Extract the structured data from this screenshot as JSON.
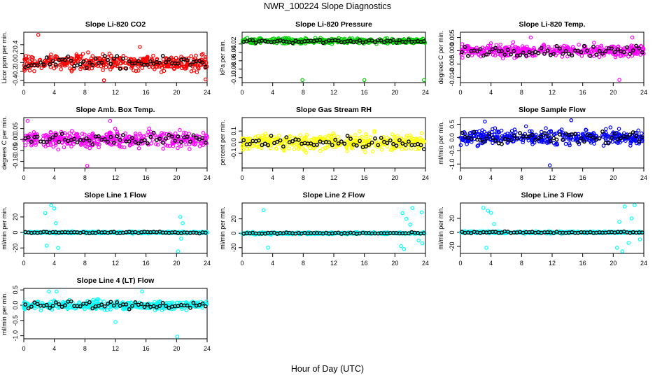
{
  "figure": {
    "title": "NWR_100224  Slope Diagnostics",
    "xlabel": "Hour of Day (UTC)"
  },
  "chart_data": [
    {
      "type": "scatter",
      "title": "Slope Li-820 CO2",
      "ylabel": "Licor ppm per min.",
      "xlim": [
        0,
        24
      ],
      "ylim": [
        -0.45,
        0.68
      ],
      "xticks": [
        0,
        4,
        8,
        12,
        16,
        20,
        24
      ],
      "yticks": [
        -0.4,
        -0.2,
        0,
        0.2,
        0.4
      ],
      "ytick_labels": [
        "-0.4",
        "-0.2",
        "0.0",
        "0.2",
        "0.4"
      ],
      "colors": [
        "#ff0000",
        "#000000"
      ],
      "spread": 0.17,
      "outliers": [
        [
          1.9,
          0.62
        ],
        [
          10.5,
          -0.4
        ],
        [
          23.8,
          -0.38
        ],
        [
          15.2,
          0.35
        ]
      ]
    },
    {
      "type": "scatter",
      "title": "Slope Li-820 Pressure",
      "ylabel": "kPa per min.",
      "xlim": [
        0,
        24
      ],
      "ylim": [
        -0.112,
        0.008
      ],
      "xticks": [
        0,
        4,
        8,
        12,
        16,
        20,
        24
      ],
      "yticks": [
        -0.1,
        -0.08,
        -0.06,
        -0.04,
        -0.02
      ],
      "ytick_labels": [
        "-0.10",
        "-0.08",
        "-0.06",
        "-0.04",
        "-0.02"
      ],
      "colors": [
        "#00cc00",
        "#000000"
      ],
      "center": -0.013,
      "spread": 0.006,
      "outliers": [
        [
          7.9,
          -0.106
        ],
        [
          16.0,
          -0.106
        ],
        [
          23.8,
          -0.106
        ]
      ]
    },
    {
      "type": "scatter",
      "title": "Slope Li-820 Temp.",
      "ylabel": "degrees C per min.",
      "xlim": [
        0,
        24
      ],
      "ylim": [
        -0.012,
        0.007
      ],
      "xticks": [
        0,
        4,
        8,
        12,
        16,
        20,
        24
      ],
      "yticks": [
        -0.01,
        -0.005,
        0,
        0.005
      ],
      "ytick_labels": [
        "-0.010",
        "-0.005",
        "0.000",
        "0.005"
      ],
      "colors": [
        "#ff00ff",
        "#000000"
      ],
      "spread": 0.0022,
      "outliers": [
        [
          20.8,
          -0.011
        ],
        [
          9.2,
          0.005
        ],
        [
          22.5,
          0.005
        ]
      ]
    },
    {
      "type": "scatter",
      "title": "Slope Amb. Box Temp.",
      "ylabel": "degrees C per min.",
      "xlim": [
        0,
        24
      ],
      "ylim": [
        -0.13,
        0.1
      ],
      "xticks": [
        0,
        4,
        8,
        12,
        16,
        20,
        24
      ],
      "yticks": [
        -0.1,
        -0.05,
        0,
        0.05
      ],
      "ytick_labels": [
        "-0.10",
        "-0.05",
        "0.00",
        "0.05"
      ],
      "colors": [
        "#ff00ff",
        "#000000"
      ],
      "spread": 0.035,
      "outliers": [
        [
          0.5,
          0.085
        ],
        [
          8.3,
          -0.12
        ],
        [
          11.3,
          0.085
        ]
      ]
    },
    {
      "type": "scatter",
      "title": "Slope Gas Stream RH",
      "ylabel": "percent per min.",
      "xlim": [
        0,
        24
      ],
      "ylim": [
        -0.23,
        0.22
      ],
      "xticks": [
        0,
        4,
        8,
        12,
        16,
        20,
        24
      ],
      "yticks": [
        -0.1,
        0,
        0.1
      ],
      "ytick_labels": [
        "-0.1",
        "0.0",
        "0.1"
      ],
      "colors": [
        "#ffff00",
        "#000000"
      ],
      "spread": 0.07
    },
    {
      "type": "scatter",
      "title": "Slope Sample Flow",
      "ylabel": "ml/min per min.",
      "xlim": [
        0,
        24
      ],
      "ylim": [
        -1.15,
        0.75
      ],
      "xticks": [
        0,
        4,
        8,
        12,
        16,
        20,
        24
      ],
      "yticks": [
        -1,
        -0.5,
        0,
        0.5
      ],
      "ytick_labels": [
        "-1.0",
        "-0.5",
        "0.0",
        "0.5"
      ],
      "colors": [
        "#0000ff",
        "#000000"
      ],
      "spread": 0.28,
      "outliers": [
        [
          11.7,
          -1.05
        ],
        [
          14.5,
          0.65
        ],
        [
          3.2,
          0.6
        ]
      ]
    },
    {
      "type": "scatter",
      "title": "Slope Line 1 Flow",
      "ylabel": "ml/min per min.",
      "xlim": [
        0,
        24
      ],
      "ylim": [
        -27,
        38
      ],
      "xticks": [
        0,
        4,
        8,
        12,
        16,
        20,
        24
      ],
      "yticks": [
        -20,
        0,
        20
      ],
      "ytick_labels": [
        "-20",
        "0",
        "20"
      ],
      "colors": [
        "#00ffff",
        "#000000"
      ],
      "spread": 1.2,
      "outliers": [
        [
          3.6,
          35
        ],
        [
          4.0,
          31
        ],
        [
          2.8,
          25
        ],
        [
          20.5,
          20
        ],
        [
          4.5,
          -20
        ],
        [
          3.0,
          -17
        ],
        [
          20.2,
          -25
        ],
        [
          20.6,
          -8
        ],
        [
          20.8,
          12
        ],
        [
          4.2,
          12
        ]
      ]
    },
    {
      "type": "scatter",
      "title": "Slope Line 2 Flow",
      "ylabel": "ml/min per min.",
      "xlim": [
        0,
        24
      ],
      "ylim": [
        -28,
        42
      ],
      "xticks": [
        0,
        4,
        8,
        12,
        16,
        20,
        24
      ],
      "yticks": [
        -20,
        0,
        20
      ],
      "ytick_labels": [
        "-20",
        "0",
        "20"
      ],
      "colors": [
        "#00ffff",
        "#000000"
      ],
      "spread": 1.3,
      "outliers": [
        [
          2.8,
          32
        ],
        [
          22.3,
          35
        ],
        [
          23.5,
          29
        ],
        [
          21.0,
          28
        ],
        [
          21.5,
          20
        ],
        [
          20.8,
          -18
        ],
        [
          23.6,
          -14
        ],
        [
          21.2,
          -22
        ],
        [
          3.4,
          -20
        ],
        [
          23.1,
          -10
        ],
        [
          22.0,
          12
        ]
      ]
    },
    {
      "type": "scatter",
      "title": "Slope Line 3 Flow",
      "ylabel": "ml/min per min.",
      "xlim": [
        0,
        24
      ],
      "ylim": [
        -30,
        42
      ],
      "xticks": [
        0,
        4,
        8,
        12,
        16,
        20,
        24
      ],
      "yticks": [
        -20,
        0,
        20
      ],
      "ytick_labels": [
        "-20",
        "0",
        "20"
      ],
      "colors": [
        "#00ffff",
        "#000000"
      ],
      "spread": 1.5,
      "outliers": [
        [
          3.0,
          35
        ],
        [
          3.6,
          31
        ],
        [
          4.0,
          28
        ],
        [
          21.5,
          37
        ],
        [
          22.8,
          39
        ],
        [
          20.5,
          -22
        ],
        [
          21.2,
          -28
        ],
        [
          22.0,
          -15
        ],
        [
          3.4,
          -22
        ],
        [
          23.5,
          -10
        ],
        [
          20.8,
          15
        ],
        [
          22.4,
          20
        ],
        [
          4.4,
          12
        ]
      ]
    },
    {
      "type": "scatter",
      "title": "Slope Line 4 (LT) Flow",
      "ylabel": "ml/min per min.",
      "xlim": [
        0,
        24
      ],
      "ylim": [
        -1.1,
        0.55
      ],
      "xticks": [
        0,
        4,
        8,
        12,
        16,
        20,
        24
      ],
      "yticks": [
        -1,
        -0.5,
        0,
        0.5
      ],
      "ytick_labels": [
        "-1.0",
        "-0.5",
        "0.0",
        "0.5"
      ],
      "colors": [
        "#00ffff",
        "#000000"
      ],
      "spread": 0.14,
      "outliers": [
        [
          20.1,
          -1.05
        ],
        [
          12.0,
          -0.55
        ],
        [
          15.5,
          0.45
        ],
        [
          4.3,
          0.45
        ],
        [
          3.3,
          0.45
        ]
      ]
    }
  ]
}
